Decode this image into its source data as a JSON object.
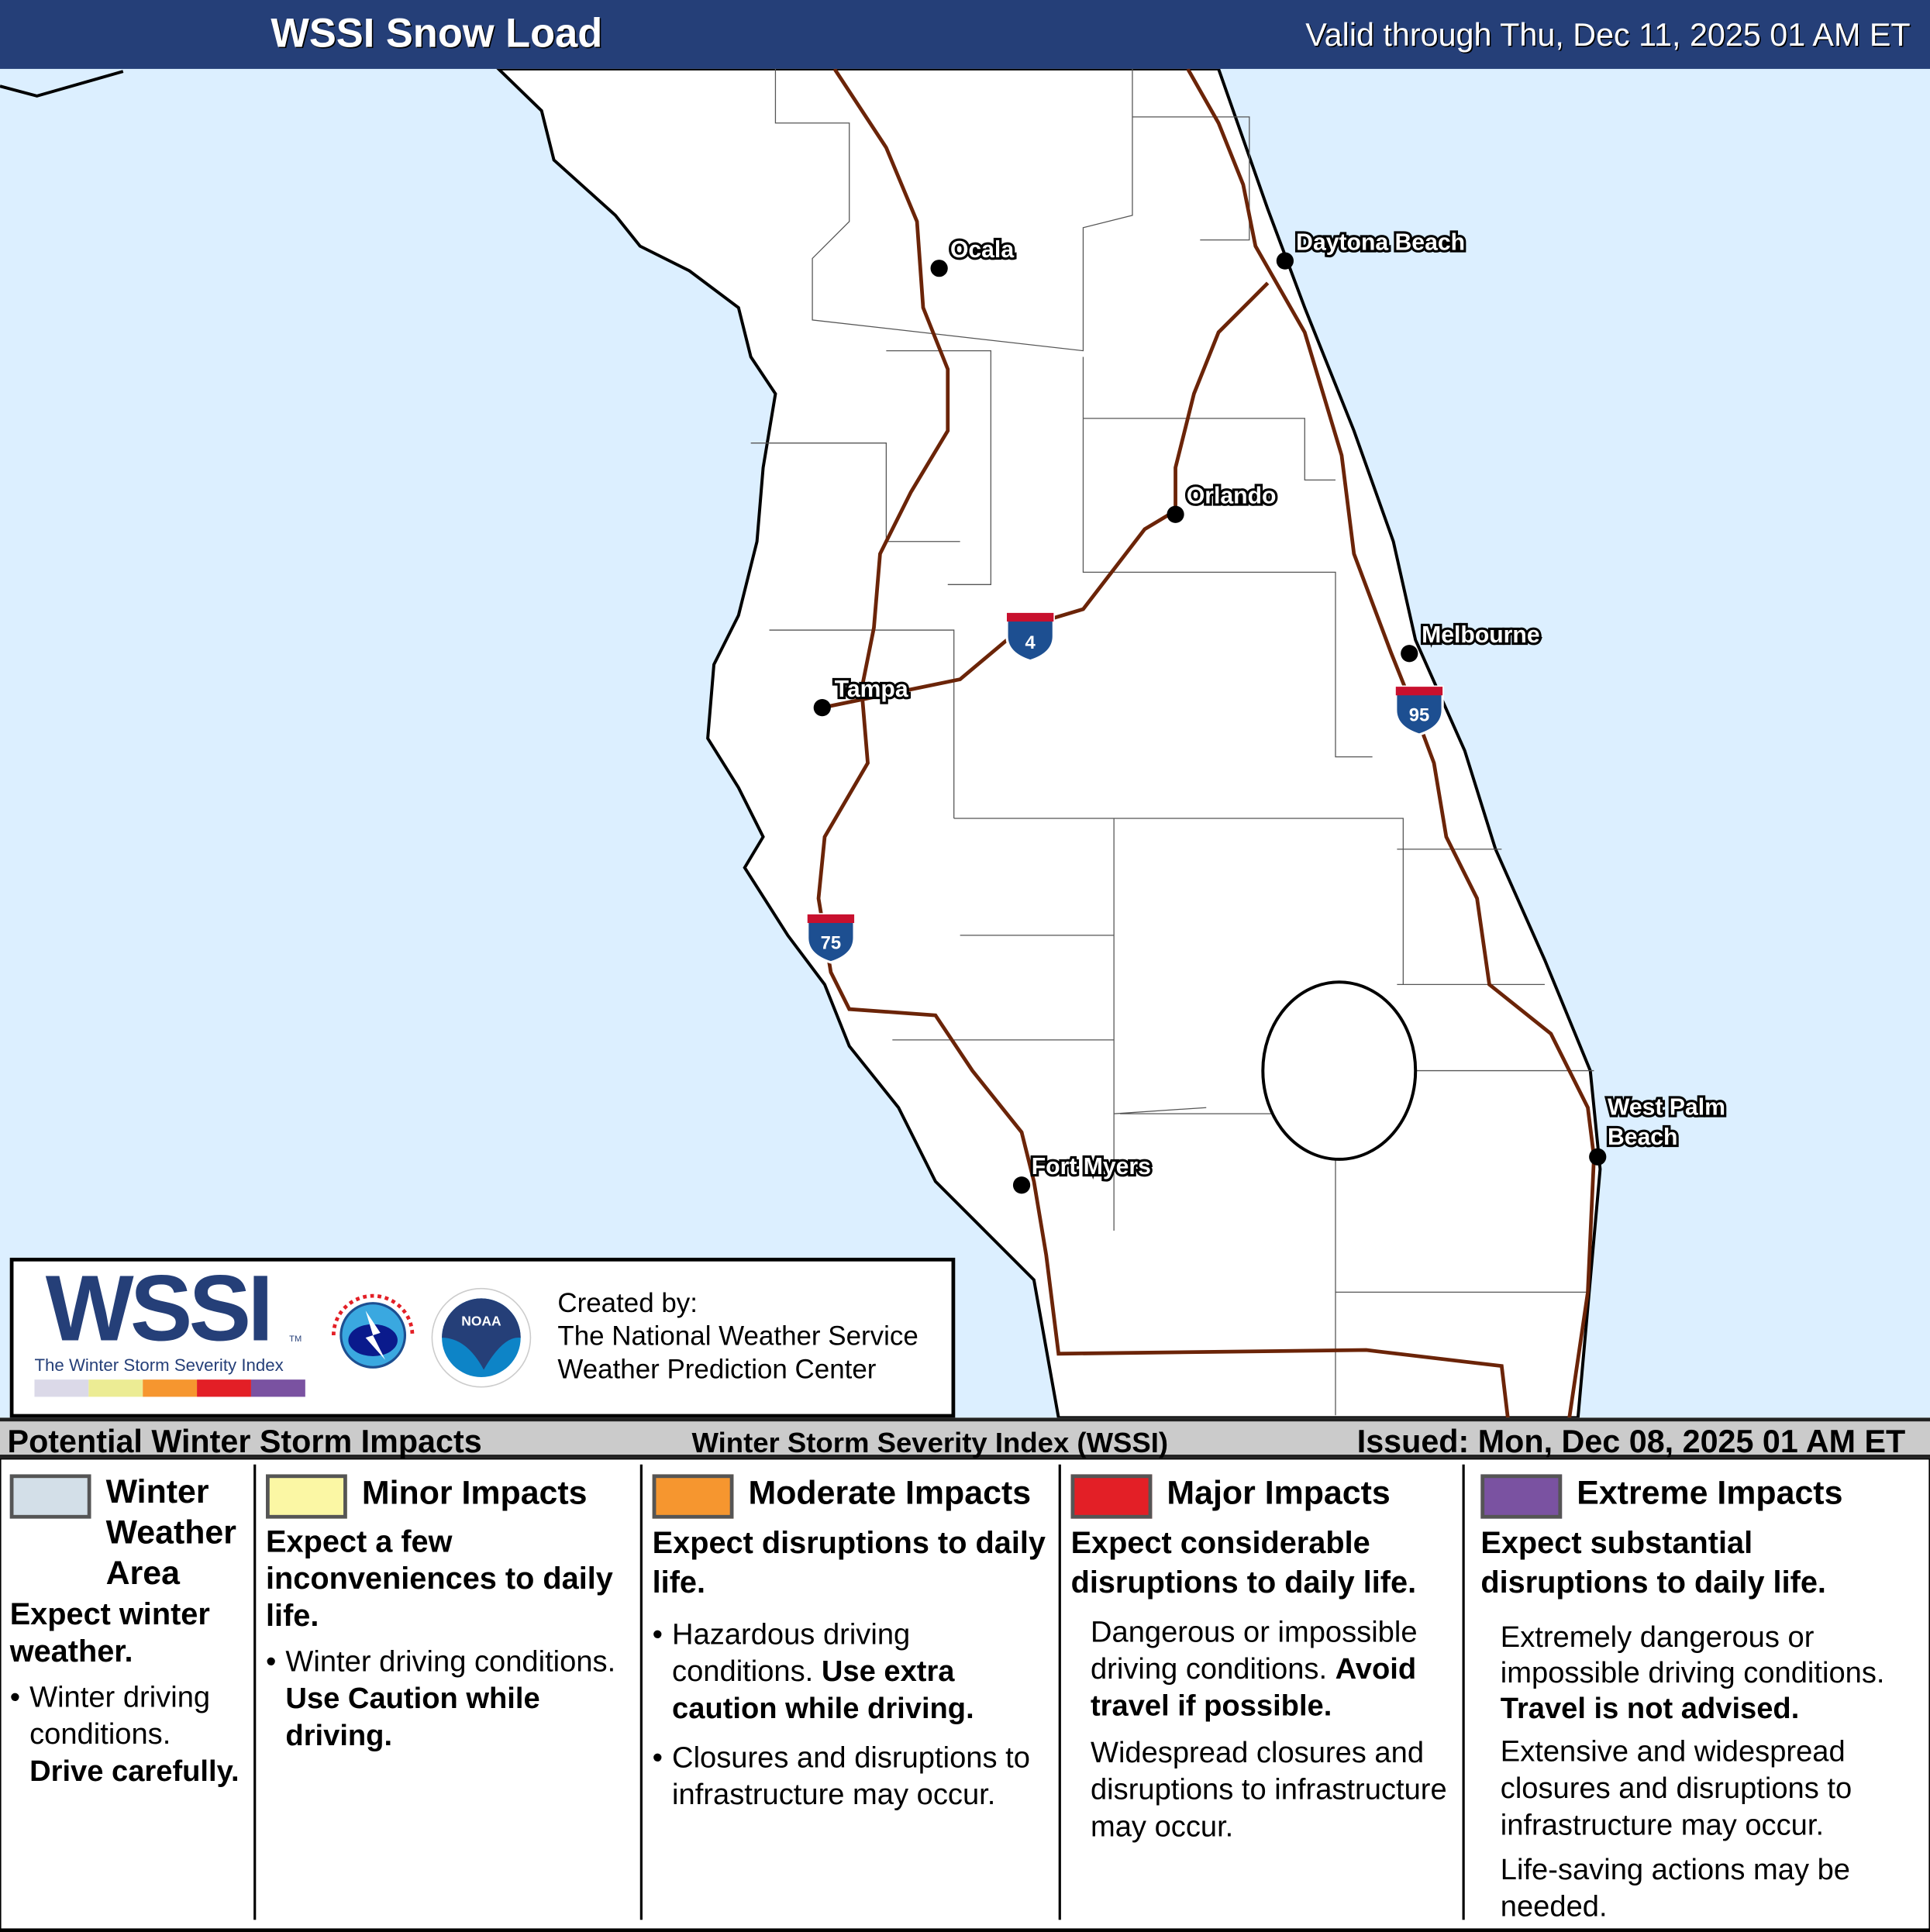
{
  "header": {
    "title": "WSSI Snow Load",
    "valid": "Valid through Thu, Dec 11, 2025 01 AM ET"
  },
  "map": {
    "ocean_color": "#dcefff",
    "land_color": "#ffffff",
    "road_color": "#6b2408",
    "cities": [
      "Ocala",
      "Daytona Beach",
      "Orlando",
      "Melbourne",
      "Tampa",
      "Fort Myers",
      "West Palm",
      "Beach"
    ],
    "interstates": [
      "4",
      "95",
      "75"
    ]
  },
  "logo": {
    "wssi": "WSSI",
    "tm": "TM",
    "subtitle": "The Winter Storm Severity Index",
    "created_by": "Created by:",
    "line1": "The National Weather Service",
    "line2": "Weather Prediction Center",
    "nws_logo_text": "NATIONAL WEATHER SERVICE",
    "noaa_logo_text": "NOAA"
  },
  "legend_bar": {
    "title": "Potential Winter Storm Impacts",
    "center": "Winter Storm Severity Index (WSSI)",
    "issued": "Issued: Mon, Dec 08, 2025 01 AM ET"
  },
  "categories": [
    {
      "color": "#d3dfe8",
      "title1": "Winter",
      "title2": "Weather",
      "title3": "Area",
      "summary": "Expect winter weather.",
      "bullet": "Winter driving conditions.",
      "bold": "Drive carefully."
    },
    {
      "color": "#fbf7a4",
      "title": "Minor Impacts",
      "summary": "Expect a few inconveniences to daily life.",
      "bullet": "Winter driving conditions.",
      "bold": "Use Caution while driving."
    },
    {
      "color": "#f6962f",
      "title": "Moderate Impacts",
      "summary": "Expect disruptions to daily life.",
      "bullet": "Hazardous driving conditions.",
      "bold": "Use extra caution while driving.",
      "bullet2": "Closures and disruptions to infrastructure may occur."
    },
    {
      "color": "#e31f26",
      "title": "Major Impacts",
      "summary": "Expect considerable disruptions to daily life.",
      "p1": "Dangerous or impossible driving conditions.",
      "bold": "Avoid travel if possible.",
      "p2": "Widespread closures and disruptions to infrastructure may occur."
    },
    {
      "color": "#7a52a1",
      "title": "Extreme Impacts",
      "summary": "Expect substantial disruptions to daily life.",
      "p1": "Extremely dangerous or impossible driving conditions.",
      "bold": "Travel is not advised.",
      "p2": "Extensive and widespread closures and disruptions to infrastructure may occur.",
      "p3": "Life-saving actions may be needed."
    }
  ]
}
